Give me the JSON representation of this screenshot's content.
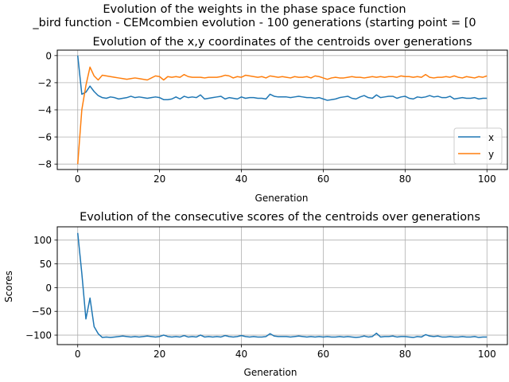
{
  "figure": {
    "suptitle_line1": "Evolution of the weights in the phase space  function",
    "suptitle_line2": "_bird function - CEMcombien evolution - 100 generations (starting point = [0"
  },
  "chart_data": [
    {
      "type": "line",
      "title": "Evolution of the x,y coordinates of the centroids over generations",
      "xlabel": "Generation",
      "ylabel": "",
      "xlim": [
        -5,
        105
      ],
      "ylim": [
        -8.4,
        0.4
      ],
      "xticks": [
        0,
        20,
        40,
        60,
        80,
        100
      ],
      "yticks": [
        0,
        -2,
        -4,
        -6,
        -8
      ],
      "grid": true,
      "legend": "center-right",
      "series": [
        {
          "name": "x",
          "color": "#1f77b4",
          "values": [
            0,
            -2.85,
            -2.7,
            -2.25,
            -2.65,
            -2.95,
            -3.1,
            -3.15,
            -3.05,
            -3.1,
            -3.2,
            -3.15,
            -3.1,
            -3.0,
            -3.1,
            -3.05,
            -3.1,
            -3.15,
            -3.1,
            -3.05,
            -3.1,
            -3.25,
            -3.25,
            -3.2,
            -3.05,
            -3.2,
            -3.0,
            -3.1,
            -3.05,
            -3.1,
            -2.9,
            -3.2,
            -3.15,
            -3.1,
            -3.05,
            -3.0,
            -3.2,
            -3.1,
            -3.15,
            -3.2,
            -3.05,
            -3.15,
            -3.1,
            -3.1,
            -3.15,
            -3.15,
            -3.2,
            -2.85,
            -3.0,
            -3.05,
            -3.05,
            -3.05,
            -3.1,
            -3.05,
            -3.0,
            -3.05,
            -3.1,
            -3.1,
            -3.15,
            -3.1,
            -3.2,
            -3.3,
            -3.25,
            -3.2,
            -3.1,
            -3.05,
            -3.0,
            -3.15,
            -3.2,
            -3.05,
            -2.95,
            -3.1,
            -3.15,
            -2.9,
            -3.1,
            -3.05,
            -3.0,
            -3.0,
            -3.15,
            -3.05,
            -3.0,
            -3.15,
            -3.2,
            -3.05,
            -3.1,
            -3.05,
            -2.95,
            -3.05,
            -3.0,
            -3.1,
            -3.1,
            -3.0,
            -3.2,
            -3.15,
            -3.1,
            -3.15,
            -3.15,
            -3.1,
            -3.2,
            -3.15,
            -3.15
          ]
        },
        {
          "name": "y",
          "color": "#ff7f0e",
          "values": [
            -8.0,
            -4.0,
            -2.2,
            -0.85,
            -1.5,
            -1.8,
            -1.45,
            -1.5,
            -1.55,
            -1.6,
            -1.65,
            -1.7,
            -1.75,
            -1.7,
            -1.65,
            -1.7,
            -1.75,
            -1.8,
            -1.65,
            -1.5,
            -1.55,
            -1.8,
            -1.55,
            -1.6,
            -1.55,
            -1.6,
            -1.4,
            -1.55,
            -1.6,
            -1.6,
            -1.6,
            -1.65,
            -1.6,
            -1.6,
            -1.6,
            -1.55,
            -1.45,
            -1.5,
            -1.65,
            -1.55,
            -1.6,
            -1.45,
            -1.5,
            -1.55,
            -1.6,
            -1.55,
            -1.65,
            -1.5,
            -1.55,
            -1.6,
            -1.55,
            -1.6,
            -1.65,
            -1.55,
            -1.6,
            -1.6,
            -1.55,
            -1.65,
            -1.5,
            -1.55,
            -1.65,
            -1.75,
            -1.65,
            -1.6,
            -1.65,
            -1.65,
            -1.6,
            -1.55,
            -1.6,
            -1.6,
            -1.65,
            -1.6,
            -1.55,
            -1.6,
            -1.55,
            -1.6,
            -1.55,
            -1.55,
            -1.6,
            -1.5,
            -1.55,
            -1.55,
            -1.6,
            -1.55,
            -1.6,
            -1.4,
            -1.6,
            -1.65,
            -1.6,
            -1.6,
            -1.55,
            -1.6,
            -1.5,
            -1.6,
            -1.65,
            -1.55,
            -1.6,
            -1.65,
            -1.55,
            -1.6,
            -1.5
          ]
        }
      ]
    },
    {
      "type": "line",
      "title": "Evolution of the consecutive scores of the centroids over generations",
      "xlabel": "Generation",
      "ylabel": "Scores",
      "xlim": [
        -5,
        105
      ],
      "ylim": [
        -120,
        128
      ],
      "xticks": [
        0,
        20,
        40,
        60,
        80,
        100
      ],
      "yticks": [
        100,
        50,
        0,
        -50,
        -100
      ],
      "grid": true,
      "series": [
        {
          "color": "#1f77b4",
          "values": [
            115,
            30,
            -66,
            -22,
            -82,
            -97,
            -105,
            -104,
            -105,
            -104,
            -103,
            -102,
            -103,
            -104,
            -103,
            -104,
            -103,
            -102,
            -103,
            -104,
            -103,
            -100,
            -103,
            -104,
            -103,
            -104,
            -101,
            -104,
            -103,
            -104,
            -100,
            -104,
            -103,
            -104,
            -103,
            -104,
            -101,
            -103,
            -104,
            -103,
            -101,
            -103,
            -104,
            -103,
            -104,
            -104,
            -103,
            -97,
            -102,
            -103,
            -103,
            -103,
            -104,
            -103,
            -102,
            -103,
            -104,
            -103,
            -104,
            -103,
            -104,
            -103,
            -104,
            -104,
            -103,
            -104,
            -103,
            -104,
            -105,
            -104,
            -102,
            -104,
            -103,
            -96,
            -104,
            -103,
            -103,
            -102,
            -104,
            -103,
            -103,
            -104,
            -105,
            -103,
            -104,
            -99,
            -102,
            -103,
            -102,
            -104,
            -104,
            -103,
            -104,
            -104,
            -103,
            -104,
            -104,
            -103,
            -105,
            -104,
            -104
          ]
        }
      ]
    }
  ]
}
